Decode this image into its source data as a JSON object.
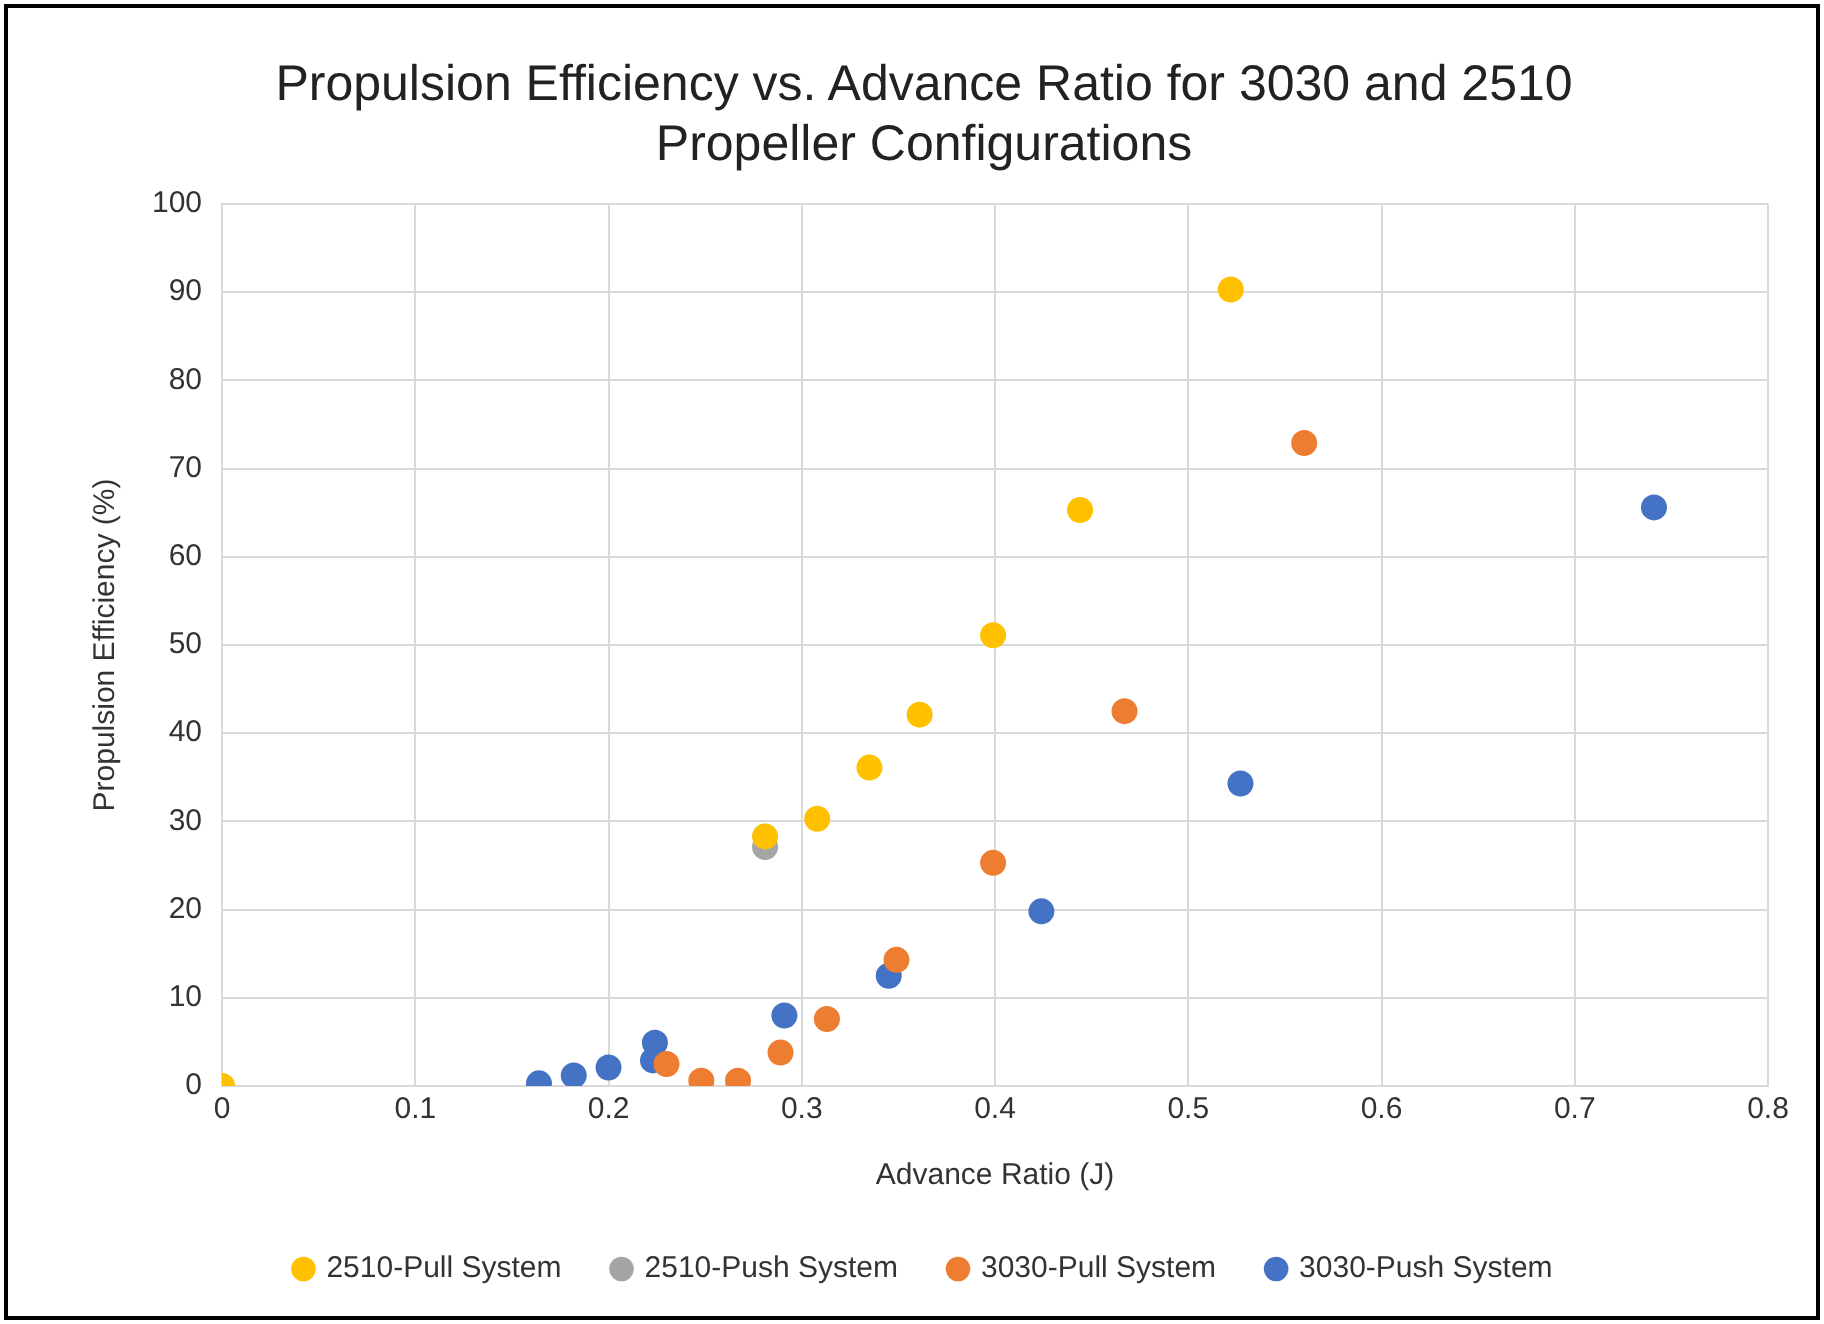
{
  "chart_data": {
    "type": "scatter",
    "title": "Propulsion Efficiency vs. Advance Ratio for 3030 and 2510 Propeller Configurations",
    "xlabel": "Advance Ratio (J)",
    "ylabel": "Propulsion Efficiency (%)",
    "xlim": [
      0,
      0.8
    ],
    "xticks": [
      0,
      0.1,
      0.2,
      0.3,
      0.4,
      0.5,
      0.6,
      0.7,
      0.8
    ],
    "ylim": [
      0,
      100
    ],
    "yticks": [
      0,
      10,
      20,
      30,
      40,
      50,
      60,
      70,
      80,
      90,
      100
    ],
    "grid": true,
    "legend": "bottom",
    "marker": "circle",
    "series": [
      {
        "name": "3030-Push System",
        "color": "#4472c4",
        "x": [
          0.164,
          0.182,
          0.2,
          0.224,
          0.223,
          0.291,
          0.345,
          0.424,
          0.527,
          0.741
        ],
        "values": [
          0.3,
          1.2,
          2.1,
          4.9,
          2.9,
          8,
          12.5,
          19.8,
          34.3,
          65.6
        ]
      },
      {
        "name": "3030-Pull System",
        "color": "#ed7d31",
        "x": [
          0.23,
          0.248,
          0.267,
          0.289,
          0.313,
          0.349,
          0.399,
          0.467,
          0.56
        ],
        "values": [
          2.5,
          0.6,
          0.6,
          3.8,
          7.6,
          14.3,
          25.3,
          42.5,
          72.9
        ]
      },
      {
        "name": "2510-Push System",
        "color": "#a5a5a5",
        "x": [
          0.281
        ],
        "values": [
          27.1
        ]
      },
      {
        "name": "2510-Pull System",
        "color": "#ffc000",
        "x": [
          0,
          0.281,
          0.308,
          0.335,
          0.361,
          0.399,
          0.444,
          0.522
        ],
        "values": [
          0,
          28.3,
          30.3,
          36.1,
          42.1,
          51.1,
          65.3,
          90.3
        ]
      }
    ]
  }
}
